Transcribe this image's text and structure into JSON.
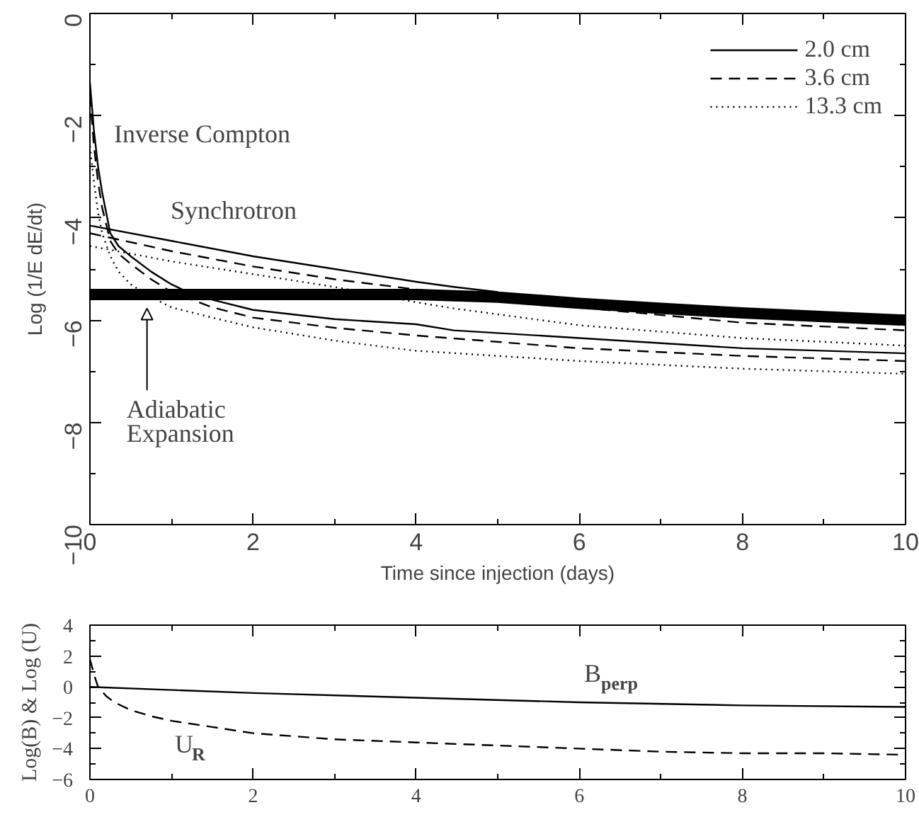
{
  "chart_data": [
    {
      "type": "line",
      "xlabel": "Time since injection (days)",
      "ylabel": "Log (1/E dE/dt)",
      "xlim": [
        0,
        10
      ],
      "ylim": [
        -10,
        0
      ],
      "xticks": [
        0,
        2,
        4,
        6,
        8,
        10
      ],
      "yticks": [
        0,
        {
          "value": -2,
          "label": "−2"
        },
        {
          "value": -4,
          "label": "−4"
        },
        {
          "value": -6,
          "label": "−6"
        },
        {
          "value": -8,
          "label": "−8"
        },
        {
          "value": -10,
          "label": "−10"
        }
      ],
      "grid": false,
      "legend": "top right",
      "series": [
        {
          "name": "2.0 cm",
          "color": "#000000",
          "line_style": "solid",
          "x": [
            0,
            1,
            2,
            3,
            4,
            4.46,
            5
          ],
          "values": [
            -4.15,
            -4.45,
            -4.75,
            -5.0,
            -5.25,
            -5.35,
            -5.45
          ]
        },
        {
          "name": "3.6 cm",
          "color": "#000000",
          "line_style": "dashed",
          "x": [
            0,
            1,
            2,
            3,
            4,
            4.46,
            6,
            8,
            10
          ],
          "values": [
            -4.3,
            -4.65,
            -4.95,
            -5.2,
            -5.4,
            -5.47,
            -5.75,
            -6.05,
            -6.2
          ]
        },
        {
          "name": "13.3 cm",
          "color": "#000000",
          "line_style": "dotted",
          "x": [
            0,
            1,
            2,
            3,
            4,
            4.46,
            6,
            8,
            10
          ],
          "values": [
            -4.55,
            -4.85,
            -5.1,
            -5.35,
            -5.65,
            -5.77,
            -6.1,
            -6.35,
            -6.5
          ]
        },
        {
          "color": "#000000",
          "line_style": "solid",
          "x": [
            0,
            0.05,
            0.1,
            0.15,
            0.25,
            0.35,
            0.5,
            0.75,
            1.0,
            1.2,
            1.5,
            2,
            3,
            4,
            4.46,
            6,
            8,
            10
          ],
          "values": [
            -1.35,
            -2.3,
            -3.0,
            -3.5,
            -4.3,
            -4.55,
            -4.75,
            -5.05,
            -5.3,
            -5.45,
            -5.6,
            -5.8,
            -5.98,
            -6.08,
            -6.2,
            -6.35,
            -6.55,
            -6.65
          ]
        },
        {
          "color": "#000000",
          "line_style": "dashed",
          "x": [
            0,
            0.05,
            0.1,
            0.15,
            0.25,
            0.35,
            0.5,
            0.75,
            1.0,
            1.5,
            2,
            3,
            4,
            6,
            8,
            10
          ],
          "values": [
            -1.6,
            -2.6,
            -3.3,
            -3.8,
            -4.45,
            -4.7,
            -4.9,
            -5.2,
            -5.45,
            -5.75,
            -5.95,
            -6.15,
            -6.3,
            -6.55,
            -6.7,
            -6.8
          ]
        },
        {
          "color": "#000000",
          "line_style": "dotted",
          "x": [
            0,
            0.05,
            0.1,
            0.15,
            0.25,
            0.35,
            0.5,
            0.75,
            1.0,
            1.5,
            2,
            3,
            4,
            6,
            8,
            10
          ],
          "values": [
            -2.6,
            -3.3,
            -3.9,
            -4.3,
            -4.75,
            -5.05,
            -5.3,
            -5.55,
            -5.75,
            -5.95,
            -6.14,
            -6.4,
            -6.6,
            -6.8,
            -6.95,
            -7.05
          ]
        },
        {
          "color": "#000000",
          "line_style": "solid",
          "x": [
            0,
            1,
            2,
            3,
            4,
            5,
            6,
            7,
            8,
            9,
            10
          ],
          "values": [
            -5.5,
            -5.5,
            -5.5,
            -5.5,
            -5.5,
            -5.55,
            -5.67,
            -5.77,
            -5.86,
            -5.93,
            -6.0
          ]
        }
      ],
      "annotations": [
        "Inverse Compton",
        "Synchrotron",
        {
          "text": "Adiabatic Expansion",
          "x": 0.7,
          "y": -5.67
        }
      ]
    },
    {
      "type": "line",
      "ylabel": "Log(B) & Log (U)",
      "xlim": [
        0,
        10
      ],
      "ylim": [
        -6,
        4
      ],
      "xticks": [
        0,
        2,
        4,
        6,
        8,
        10
      ],
      "yticks": [
        {
          "value": -6,
          "label": "−6"
        },
        {
          "value": -4,
          "label": "−4"
        },
        {
          "value": -2,
          "label": "−2"
        },
        0,
        2,
        4
      ],
      "grid": false,
      "series": [
        {
          "color": "#000000",
          "line_style": "solid",
          "x": [
            0,
            2,
            4,
            6,
            8,
            10
          ],
          "values": [
            0,
            -0.4,
            -0.7,
            -1.0,
            -1.2,
            -1.3
          ]
        },
        {
          "color": "#000000",
          "line_style": "dashed",
          "x": [
            0,
            0.05,
            0.1,
            0.2,
            0.3,
            0.5,
            0.75,
            1,
            1.5,
            2,
            3,
            4,
            5,
            6,
            7,
            8,
            9,
            10
          ],
          "values": [
            1.8,
            0.8,
            0,
            -0.6,
            -1.0,
            -1.5,
            -1.9,
            -2.2,
            -2.6,
            -3.0,
            -3.4,
            -3.6,
            -3.8,
            -4.0,
            -4.2,
            -4.3,
            -4.3,
            -4.4
          ]
        }
      ],
      "annotations": [
        "B$_{perp}$",
        "U$_{R}$"
      ]
    }
  ]
}
